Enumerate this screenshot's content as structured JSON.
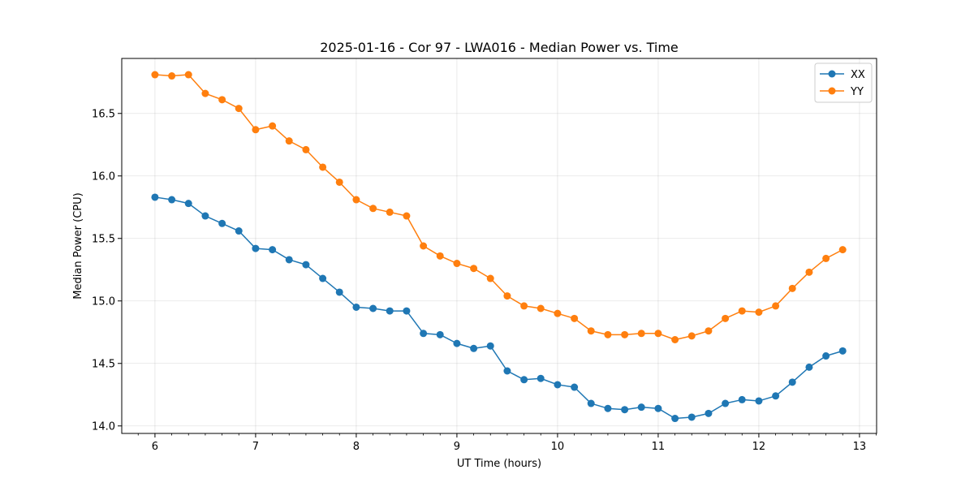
{
  "chart_data": {
    "type": "line",
    "title": "2025-01-16 - Cor 97 - LWA016 - Median Power vs. Time",
    "xlabel": "UT Time (hours)",
    "ylabel": "Median Power (CPU)",
    "xlim": [
      5.67,
      13.17
    ],
    "ylim": [
      13.94,
      16.94
    ],
    "xticks": [
      6,
      7,
      8,
      9,
      10,
      11,
      12,
      13
    ],
    "xtick_labels": [
      "6",
      "7",
      "8",
      "9",
      "10",
      "11",
      "12",
      "13"
    ],
    "yticks": [
      14.0,
      14.5,
      15.0,
      15.5,
      16.0,
      16.5
    ],
    "ytick_labels": [
      "14.0",
      "14.5",
      "15.0",
      "15.5",
      "16.0",
      "16.5"
    ],
    "grid": true,
    "legend_position": "top-right",
    "x": [
      6.0,
      6.167,
      6.333,
      6.5,
      6.667,
      6.833,
      7.0,
      7.167,
      7.333,
      7.5,
      7.667,
      7.833,
      8.0,
      8.167,
      8.333,
      8.5,
      8.667,
      8.833,
      9.0,
      9.167,
      9.333,
      9.5,
      9.667,
      9.833,
      10.0,
      10.167,
      10.333,
      10.5,
      10.667,
      10.833,
      11.0,
      11.167,
      11.333,
      11.5,
      11.667,
      11.833,
      12.0,
      12.167,
      12.333,
      12.5,
      12.667,
      12.833
    ],
    "series": [
      {
        "name": "XX",
        "color": "#1f77b4",
        "values": [
          15.83,
          15.81,
          15.78,
          15.68,
          15.62,
          15.56,
          15.42,
          15.41,
          15.33,
          15.29,
          15.18,
          15.07,
          14.95,
          14.94,
          14.92,
          14.92,
          14.74,
          14.73,
          14.66,
          14.62,
          14.64,
          14.44,
          14.37,
          14.38,
          14.33,
          14.31,
          14.18,
          14.14,
          14.13,
          14.15,
          14.14,
          14.06,
          14.07,
          14.1,
          14.18,
          14.21,
          14.2,
          14.24,
          14.35,
          14.47,
          14.56,
          14.6
        ]
      },
      {
        "name": "YY",
        "color": "#ff7f0e",
        "values": [
          16.81,
          16.8,
          16.81,
          16.66,
          16.61,
          16.54,
          16.37,
          16.4,
          16.28,
          16.21,
          16.07,
          15.95,
          15.81,
          15.74,
          15.71,
          15.68,
          15.44,
          15.36,
          15.3,
          15.26,
          15.18,
          15.04,
          14.96,
          14.94,
          14.9,
          14.86,
          14.76,
          14.73,
          14.73,
          14.74,
          14.74,
          14.69,
          14.72,
          14.76,
          14.86,
          14.92,
          14.91,
          14.96,
          15.1,
          15.23,
          15.34,
          15.41
        ]
      }
    ]
  }
}
